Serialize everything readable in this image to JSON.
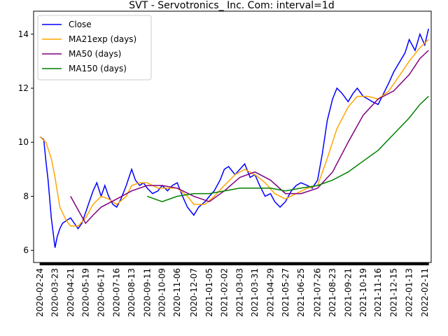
{
  "chart_data": {
    "type": "line",
    "title": "SVT - Servotronics_ Inc. Com: interval=1d",
    "xlabel": "",
    "ylabel": "",
    "x_range": [
      "2020-02-12",
      "2022-02-23"
    ],
    "ylim": [
      5.55,
      14.85
    ],
    "yticks": [
      6,
      8,
      10,
      12,
      14
    ],
    "xticks": [
      "2020-02-24",
      "2020-03-23",
      "2020-04-21",
      "2020-05-19",
      "2020-06-17",
      "2020-07-16",
      "2020-08-13",
      "2020-09-11",
      "2020-10-09",
      "2020-11-06",
      "2020-12-07",
      "2021-01-05",
      "2021-02-02",
      "2021-03-03",
      "2021-03-31",
      "2021-04-29",
      "2021-05-27",
      "2021-06-25",
      "2021-07-26",
      "2021-08-23",
      "2021-09-21",
      "2021-10-19",
      "2021-11-16",
      "2021-12-15",
      "2022-01-13",
      "2022-02-11"
    ],
    "grid": false,
    "legend": "upper-left",
    "series": [
      {
        "name": "Close",
        "color": "#0000ff",
        "x": [
          "2020-02-24",
          "2020-03-02",
          "2020-03-06",
          "2020-03-10",
          "2020-03-16",
          "2020-03-23",
          "2020-03-27",
          "2020-04-01",
          "2020-04-06",
          "2020-04-13",
          "2020-04-21",
          "2020-04-28",
          "2020-05-05",
          "2020-05-12",
          "2020-05-19",
          "2020-05-26",
          "2020-06-02",
          "2020-06-09",
          "2020-06-17",
          "2020-06-24",
          "2020-07-01",
          "2020-07-09",
          "2020-07-16",
          "2020-07-24",
          "2020-08-03",
          "2020-08-13",
          "2020-08-20",
          "2020-08-28",
          "2020-09-04",
          "2020-09-11",
          "2020-09-21",
          "2020-10-01",
          "2020-10-09",
          "2020-10-19",
          "2020-10-28",
          "2020-11-06",
          "2020-11-16",
          "2020-11-25",
          "2020-12-07",
          "2020-12-16",
          "2020-12-28",
          "2021-01-05",
          "2021-01-14",
          "2021-01-25",
          "2021-02-02",
          "2021-02-10",
          "2021-02-22",
          "2021-03-03",
          "2021-03-12",
          "2021-03-22",
          "2021-03-31",
          "2021-04-09",
          "2021-04-19",
          "2021-04-29",
          "2021-05-07",
          "2021-05-17",
          "2021-05-27",
          "2021-06-07",
          "2021-06-16",
          "2021-06-25",
          "2021-07-07",
          "2021-07-16",
          "2021-07-26",
          "2021-08-04",
          "2021-08-13",
          "2021-08-23",
          "2021-08-31",
          "2021-09-10",
          "2021-09-21",
          "2021-09-30",
          "2021-10-08",
          "2021-10-19",
          "2021-10-28",
          "2021-11-05",
          "2021-11-16",
          "2021-11-26",
          "2021-12-06",
          "2021-12-15",
          "2021-12-27",
          "2022-01-05",
          "2022-01-13",
          "2022-01-24",
          "2022-02-02",
          "2022-02-11",
          "2022-02-18"
        ],
        "values": [
          10.2,
          10.1,
          9.3,
          8.6,
          7.2,
          6.1,
          6.5,
          6.8,
          7.0,
          7.1,
          7.2,
          7.0,
          6.8,
          7.0,
          7.4,
          7.8,
          8.2,
          8.5,
          8.0,
          8.4,
          8.0,
          7.7,
          7.6,
          7.9,
          8.4,
          9.0,
          8.6,
          8.4,
          8.5,
          8.3,
          8.1,
          8.2,
          8.4,
          8.2,
          8.4,
          8.5,
          8.0,
          7.6,
          7.3,
          7.6,
          7.8,
          8.0,
          8.2,
          8.6,
          9.0,
          9.1,
          8.8,
          9.0,
          9.2,
          8.7,
          8.8,
          8.4,
          8.0,
          8.1,
          7.8,
          7.6,
          7.8,
          8.2,
          8.4,
          8.5,
          8.4,
          8.3,
          8.6,
          9.6,
          10.8,
          11.6,
          12.0,
          11.8,
          11.5,
          11.8,
          12.0,
          11.7,
          11.6,
          11.5,
          11.4,
          11.8,
          12.2,
          12.6,
          13.0,
          13.3,
          13.8,
          13.4,
          14.0,
          13.6,
          14.2
        ]
      },
      {
        "name": "MA21exp (days)",
        "color": "#ffa500",
        "x": [
          "2020-02-24",
          "2020-03-06",
          "2020-03-16",
          "2020-03-23",
          "2020-04-01",
          "2020-04-13",
          "2020-04-21",
          "2020-05-05",
          "2020-05-19",
          "2020-06-02",
          "2020-06-17",
          "2020-07-01",
          "2020-07-16",
          "2020-08-03",
          "2020-08-13",
          "2020-08-28",
          "2020-09-11",
          "2020-10-01",
          "2020-10-19",
          "2020-11-06",
          "2020-11-25",
          "2020-12-07",
          "2020-12-28",
          "2021-01-14",
          "2021-02-02",
          "2021-02-22",
          "2021-03-12",
          "2021-03-31",
          "2021-04-19",
          "2021-05-07",
          "2021-05-27",
          "2021-06-16",
          "2021-07-07",
          "2021-07-26",
          "2021-08-13",
          "2021-08-31",
          "2021-09-21",
          "2021-10-08",
          "2021-10-28",
          "2021-11-16",
          "2021-12-06",
          "2021-12-27",
          "2022-01-13",
          "2022-02-02",
          "2022-02-18"
        ],
        "values": [
          10.2,
          10.0,
          9.4,
          8.7,
          7.6,
          7.1,
          6.9,
          6.9,
          7.2,
          7.7,
          8.0,
          7.9,
          7.7,
          8.0,
          8.4,
          8.5,
          8.5,
          8.3,
          8.3,
          8.3,
          8.0,
          7.7,
          7.7,
          8.0,
          8.4,
          8.8,
          9.0,
          8.8,
          8.5,
          8.1,
          7.9,
          8.1,
          8.3,
          8.4,
          9.4,
          10.5,
          11.3,
          11.7,
          11.7,
          11.6,
          11.9,
          12.5,
          13.0,
          13.5,
          13.8
        ]
      },
      {
        "name": "MA50 (days)",
        "color": "#800080",
        "x": [
          "2020-04-21",
          "2020-05-05",
          "2020-05-19",
          "2020-06-02",
          "2020-06-17",
          "2020-07-16",
          "2020-08-13",
          "2020-09-11",
          "2020-10-09",
          "2020-11-06",
          "2020-12-07",
          "2021-01-05",
          "2021-02-02",
          "2021-03-03",
          "2021-03-31",
          "2021-04-29",
          "2021-05-27",
          "2021-06-25",
          "2021-07-26",
          "2021-08-23",
          "2021-09-21",
          "2021-10-19",
          "2021-11-16",
          "2021-12-15",
          "2022-01-13",
          "2022-02-02",
          "2022-02-18"
        ],
        "values": [
          8.0,
          7.5,
          7.0,
          7.3,
          7.6,
          7.9,
          8.2,
          8.4,
          8.4,
          8.3,
          8.0,
          7.8,
          8.2,
          8.7,
          8.9,
          8.6,
          8.1,
          8.1,
          8.3,
          8.9,
          10.0,
          11.0,
          11.6,
          11.9,
          12.5,
          13.1,
          13.4
        ]
      },
      {
        "name": "MA150 (days)",
        "color": "#008000",
        "x": [
          "2020-09-11",
          "2020-10-09",
          "2020-11-06",
          "2020-12-07",
          "2021-01-05",
          "2021-02-02",
          "2021-03-03",
          "2021-03-31",
          "2021-04-29",
          "2021-05-27",
          "2021-06-25",
          "2021-07-26",
          "2021-08-23",
          "2021-09-21",
          "2021-10-19",
          "2021-11-16",
          "2021-12-15",
          "2022-01-13",
          "2022-02-02",
          "2022-02-18"
        ],
        "values": [
          8.0,
          7.8,
          8.0,
          8.1,
          8.1,
          8.2,
          8.3,
          8.3,
          8.3,
          8.2,
          8.3,
          8.4,
          8.6,
          8.9,
          9.3,
          9.7,
          10.3,
          10.9,
          11.4,
          11.7
        ]
      }
    ]
  }
}
